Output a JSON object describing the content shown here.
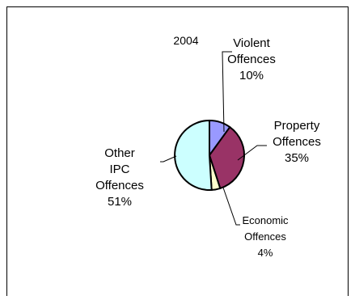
{
  "chart_data": {
    "type": "pie",
    "title": "2004",
    "slices": [
      {
        "label": [
          "Violent",
          "Offences"
        ],
        "value": 10,
        "display": "10%",
        "color": "#9999ff"
      },
      {
        "label": [
          "Property",
          "Offences"
        ],
        "value": 35,
        "display": "35%",
        "color": "#993366"
      },
      {
        "label": [
          "Economic",
          "Offences"
        ],
        "value": 4,
        "display": "4%",
        "color": "#ffffcc"
      },
      {
        "label": [
          "Other",
          "IPC",
          "Offences"
        ],
        "value": 51,
        "display": "51%",
        "color": "#ccffff"
      }
    ],
    "legend": "none"
  }
}
